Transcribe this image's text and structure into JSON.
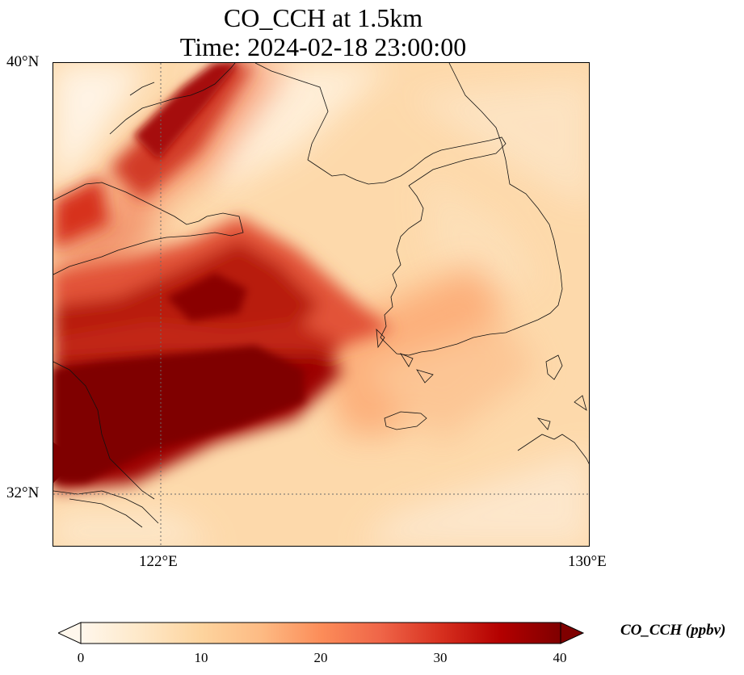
{
  "title": {
    "line1": "CO_CCH at 1.5km",
    "line2": "Time: 2024-02-18 23:00:00"
  },
  "map": {
    "variable": "CO_CCH",
    "height": "1.5km",
    "lat_labels": [
      "40°N",
      "32°N"
    ],
    "lon_labels": [
      "122°E",
      "130°E"
    ],
    "extent": {
      "lon_min": 120,
      "lon_max": 130,
      "lat_min": 31,
      "lat_max": 40
    },
    "gridlines": {
      "lons": [
        122
      ],
      "lats": [
        32
      ],
      "style": "dotted"
    },
    "colormap": "OrRd"
  },
  "colorbar": {
    "label": "CO_CCH (ppbv)",
    "ticks": [
      "0",
      "10",
      "20",
      "30",
      "40"
    ],
    "min": 0,
    "max": 40,
    "extend": "both",
    "colors": [
      "#fff7ec",
      "#fee8c8",
      "#fdd49e",
      "#fdbb84",
      "#fc8d59",
      "#ef6548",
      "#d7301f",
      "#b30000",
      "#7f0000"
    ]
  }
}
